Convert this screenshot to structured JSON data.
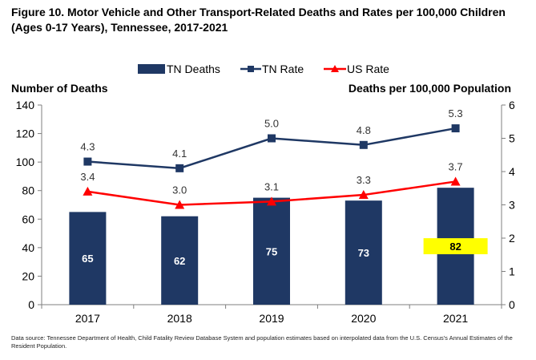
{
  "title": "Figure 10. Motor Vehicle and Other Transport-Related Deaths and Rates per 100,000 Children (Ages 0-17 Years), Tennessee, 2017-2021",
  "source": "Data source: Tennessee Department of Health, Child Fatality Review Database System and population estimates based on interpolated data from the U.S. Census's Annual Estimates of the Resident Population.",
  "colors": {
    "bar": "#1f3864",
    "tn_rate": "#1f3864",
    "us_rate": "#ff0000",
    "highlight": "#ffff00",
    "axis": "#7f7f7f"
  },
  "chart_data": {
    "type": "bar",
    "categories": [
      "2017",
      "2018",
      "2019",
      "2020",
      "2021"
    ],
    "series": [
      {
        "name": "TN Deaths",
        "type": "bar",
        "axis": "left",
        "values": [
          65,
          62,
          75,
          73,
          82
        ],
        "labels": [
          "65",
          "62",
          "75",
          "73",
          "82"
        ]
      },
      {
        "name": "TN Rate",
        "type": "line",
        "axis": "right",
        "marker": "square",
        "values": [
          4.3,
          4.1,
          5.0,
          4.8,
          5.3
        ],
        "labels": [
          "4.3",
          "4.1",
          "5.0",
          "4.8",
          "5.3"
        ]
      },
      {
        "name": "US Rate",
        "type": "line",
        "axis": "right",
        "marker": "triangle",
        "values": [
          3.4,
          3.0,
          3.1,
          3.3,
          3.7
        ],
        "labels": [
          "3.4",
          "3.0",
          "3.1",
          "3.3",
          "3.7"
        ]
      }
    ],
    "ylabel": "Number of Deaths",
    "y2label": "Deaths per 100,000 Population",
    "ylim": [
      0,
      140
    ],
    "yticks": [
      "0",
      "20",
      "40",
      "60",
      "80",
      "100",
      "120",
      "140"
    ],
    "y2lim": [
      0,
      6
    ],
    "y2ticks": [
      "0",
      "1",
      "2",
      "3",
      "4",
      "5",
      "6"
    ],
    "legend_position": "top-center",
    "grid": false,
    "highlighted_category": "2021"
  }
}
